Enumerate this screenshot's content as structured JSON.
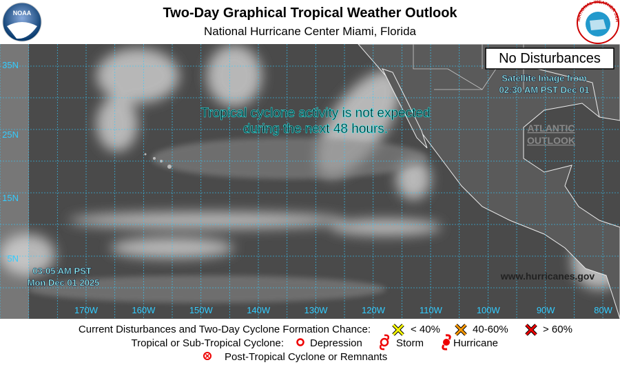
{
  "header": {
    "title": "Two-Day Graphical Tropical Weather Outlook",
    "subtitle": "National Hurricane Center  Miami, Florida",
    "left_logo": "NOAA",
    "right_logo": "NATIONAL WEATHER SERVICE"
  },
  "map": {
    "status_box": "No Disturbances",
    "satellite_note": [
      "Satellite Image from",
      "02:30 AM PST Dec 01"
    ],
    "message": [
      "Tropical cyclone activity is not expected",
      "during the next 48 hours."
    ],
    "atlantic_link": [
      "ATLANTIC",
      "OUTLOOK"
    ],
    "issued": [
      "03:05 AM PST",
      "Mon Dec 01 2025"
    ],
    "website": "www.hurricanes.gov",
    "longitude_labels": [
      "170W",
      "160W",
      "150W",
      "140W",
      "130W",
      "120W",
      "110W",
      "100W",
      "90W",
      "80W"
    ],
    "latitude_labels": [
      "35N",
      "25N",
      "15N",
      "5N"
    ]
  },
  "legend": {
    "row1_label": "Current Disturbances and Two-Day Cyclone Formation Chance:",
    "low": "< 40%",
    "medium": "40-60%",
    "high": "> 60%",
    "row2_label": "Tropical or Sub-Tropical Cyclone:",
    "depression": "Depression",
    "storm": "Storm",
    "hurricane": "Hurricane",
    "row3_label": "Post-Tropical Cyclone or Remnants"
  }
}
